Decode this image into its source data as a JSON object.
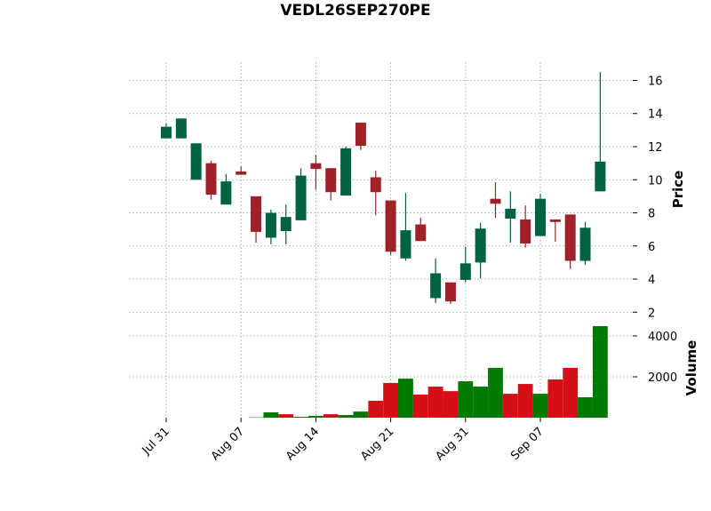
{
  "chart_data": {
    "type": "candlestick",
    "title": "VEDL26SEP270PE",
    "categories": [
      "Jul 31",
      null,
      null,
      null,
      null,
      "Aug 07",
      null,
      null,
      null,
      null,
      "Aug 14",
      null,
      null,
      null,
      null,
      "Aug 21",
      null,
      null,
      null,
      null,
      "Aug 31",
      null,
      null,
      null,
      null,
      "Sep 07",
      null,
      null,
      null,
      null
    ],
    "open": [
      12.5,
      12.5,
      10.0,
      11.0,
      8.5,
      10.5,
      9.0,
      6.5,
      6.9,
      7.55,
      11.0,
      10.7,
      9.05,
      13.45,
      10.15,
      8.75,
      5.25,
      7.3,
      2.85,
      3.8,
      3.95,
      5.0,
      8.85,
      7.65,
      7.6,
      6.6,
      7.6,
      7.9,
      5.1,
      9.3
    ],
    "high": [
      13.4,
      13.7,
      12.2,
      11.15,
      10.35,
      10.8,
      9.0,
      8.2,
      8.5,
      10.7,
      11.5,
      10.7,
      12.0,
      13.45,
      10.55,
      8.75,
      9.2,
      7.7,
      5.25,
      3.8,
      5.95,
      7.4,
      9.85,
      9.3,
      8.45,
      9.15,
      7.6,
      7.9,
      7.45,
      16.5
    ],
    "low": [
      12.5,
      12.5,
      10.0,
      8.8,
      8.5,
      10.3,
      6.2,
      6.1,
      6.1,
      7.55,
      9.4,
      8.75,
      9.05,
      11.8,
      7.85,
      5.45,
      5.1,
      6.3,
      2.55,
      2.5,
      3.8,
      4.05,
      7.7,
      6.2,
      5.9,
      6.6,
      6.25,
      4.6,
      4.85,
      9.3
    ],
    "close": [
      13.2,
      13.7,
      12.2,
      9.1,
      9.9,
      10.3,
      6.85,
      8.0,
      7.75,
      10.25,
      10.65,
      9.25,
      11.9,
      12.05,
      9.25,
      5.65,
      6.95,
      6.3,
      4.35,
      2.65,
      4.95,
      7.05,
      8.55,
      8.25,
      6.15,
      8.85,
      7.45,
      5.1,
      7.1,
      11.1
    ],
    "volume": [
      0,
      0,
      0,
      0,
      0,
      0,
      20,
      260,
      170,
      40,
      90,
      170,
      130,
      300,
      830,
      1700,
      1910,
      1130,
      1520,
      1300,
      1780,
      1520,
      2440,
      1170,
      1650,
      1170,
      1870,
      2440,
      1000,
      4480
    ],
    "volume_colors": [
      "#007a00",
      "#007a00",
      "#007a00",
      "#007a00",
      "#007a00",
      "#007a00",
      "#d50f18",
      "#007a00",
      "#d50f18",
      "#007a00",
      "#007a00",
      "#d50f18",
      "#007a00",
      "#007a00",
      "#d50f18",
      "#d50f18",
      "#007a00",
      "#d50f18",
      "#d50f18",
      "#d50f18",
      "#007a00",
      "#007a00",
      "#007a00",
      "#d50f18",
      "#d50f18",
      "#007a00",
      "#d50f18",
      "#d50f18",
      "#007a00",
      "#007a00"
    ],
    "up_color": "#006340",
    "down_color": "#a02128",
    "ylabel": "Price",
    "ylim": [
      1.8,
      17.1
    ],
    "yticks": [
      2,
      4,
      6,
      8,
      10,
      12,
      14,
      16
    ],
    "volume_label": "Volume",
    "volume_ylim": [
      0,
      4870
    ],
    "volume_yticks": [
      2000,
      4000
    ],
    "grid": true
  }
}
